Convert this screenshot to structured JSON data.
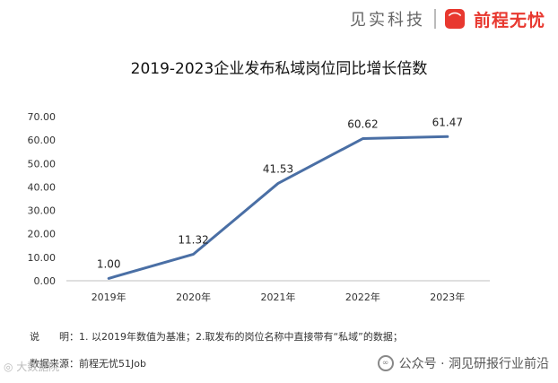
{
  "brand": {
    "text": "见实科技",
    "logo_glyph": "⌒",
    "logo_name": "前程无忧",
    "logo_color": "#e8382f"
  },
  "chart_data": {
    "type": "line",
    "title": "2019-2023企业发布私域岗位同比增长倍数",
    "categories": [
      "2019年",
      "2020年",
      "2021年",
      "2022年",
      "2023年"
    ],
    "series": [
      {
        "values": [
          1.0,
          11.32,
          41.53,
          60.62,
          61.47
        ],
        "color": "#4a6fa5"
      }
    ],
    "value_labels": [
      "1.00",
      "11.32",
      "41.53",
      "60.62",
      "61.47"
    ],
    "ylim": [
      0,
      70
    ],
    "yticks": [
      "0.00",
      "10.00",
      "20.00",
      "30.00",
      "40.00",
      "50.00",
      "60.00",
      "70.00"
    ],
    "grid": false
  },
  "notes": {
    "line1": "说　　明：1. 以2019年数值为基准；2.取发布的岗位名称中直接带有“私域”的数据；",
    "line2": "数据来源：前程无忧51Job"
  },
  "watermarks": {
    "left": "◎ 大数据院",
    "right": "公众号 · 洞见研报行业前沿",
    "right_icon": "∞"
  }
}
